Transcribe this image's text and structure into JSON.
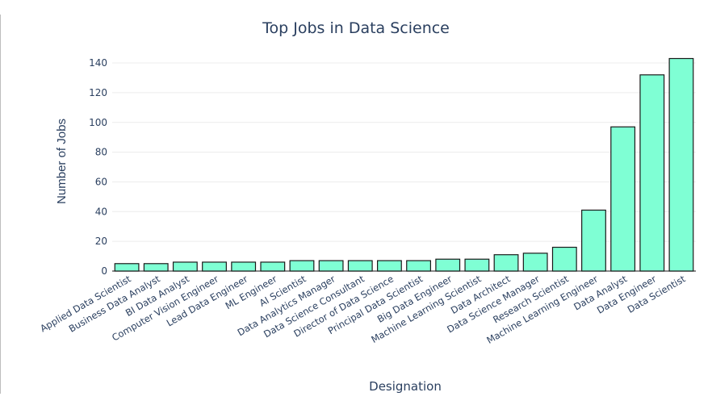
{
  "colors": {
    "bar_fill": "#7fffd4",
    "bar_stroke": "#1a1a1a",
    "text": "#2a3f5f"
  },
  "chart_data": {
    "type": "bar",
    "title": "Top Jobs in Data Science",
    "xlabel": "Designation",
    "ylabel": "Number of Jobs",
    "ylim": [
      0,
      146
    ],
    "yticks": [
      0,
      20,
      40,
      60,
      80,
      100,
      120,
      140
    ],
    "grid": true,
    "legend": "none",
    "categories": [
      "Applied Data Scientist",
      "Business Data Analyst",
      "BI Data Analyst",
      "Computer Vision Engineer",
      "Lead Data Engineer",
      "ML Engineer",
      "AI Scientist",
      "Data Analytics Manager",
      "Data Science Consultant",
      "Director of Data Science",
      "Principal Data Scientist",
      "Big Data Engineer",
      "Machine Learning Scientist",
      "Data Architect",
      "Data Science Manager",
      "Research Scientist",
      "Machine Learning Engineer",
      "Data Analyst",
      "Data Engineer",
      "Data Scientist"
    ],
    "values": [
      5,
      5,
      6,
      6,
      6,
      6,
      7,
      7,
      7,
      7,
      7,
      8,
      8,
      11,
      12,
      16,
      41,
      97,
      132,
      143
    ]
  }
}
